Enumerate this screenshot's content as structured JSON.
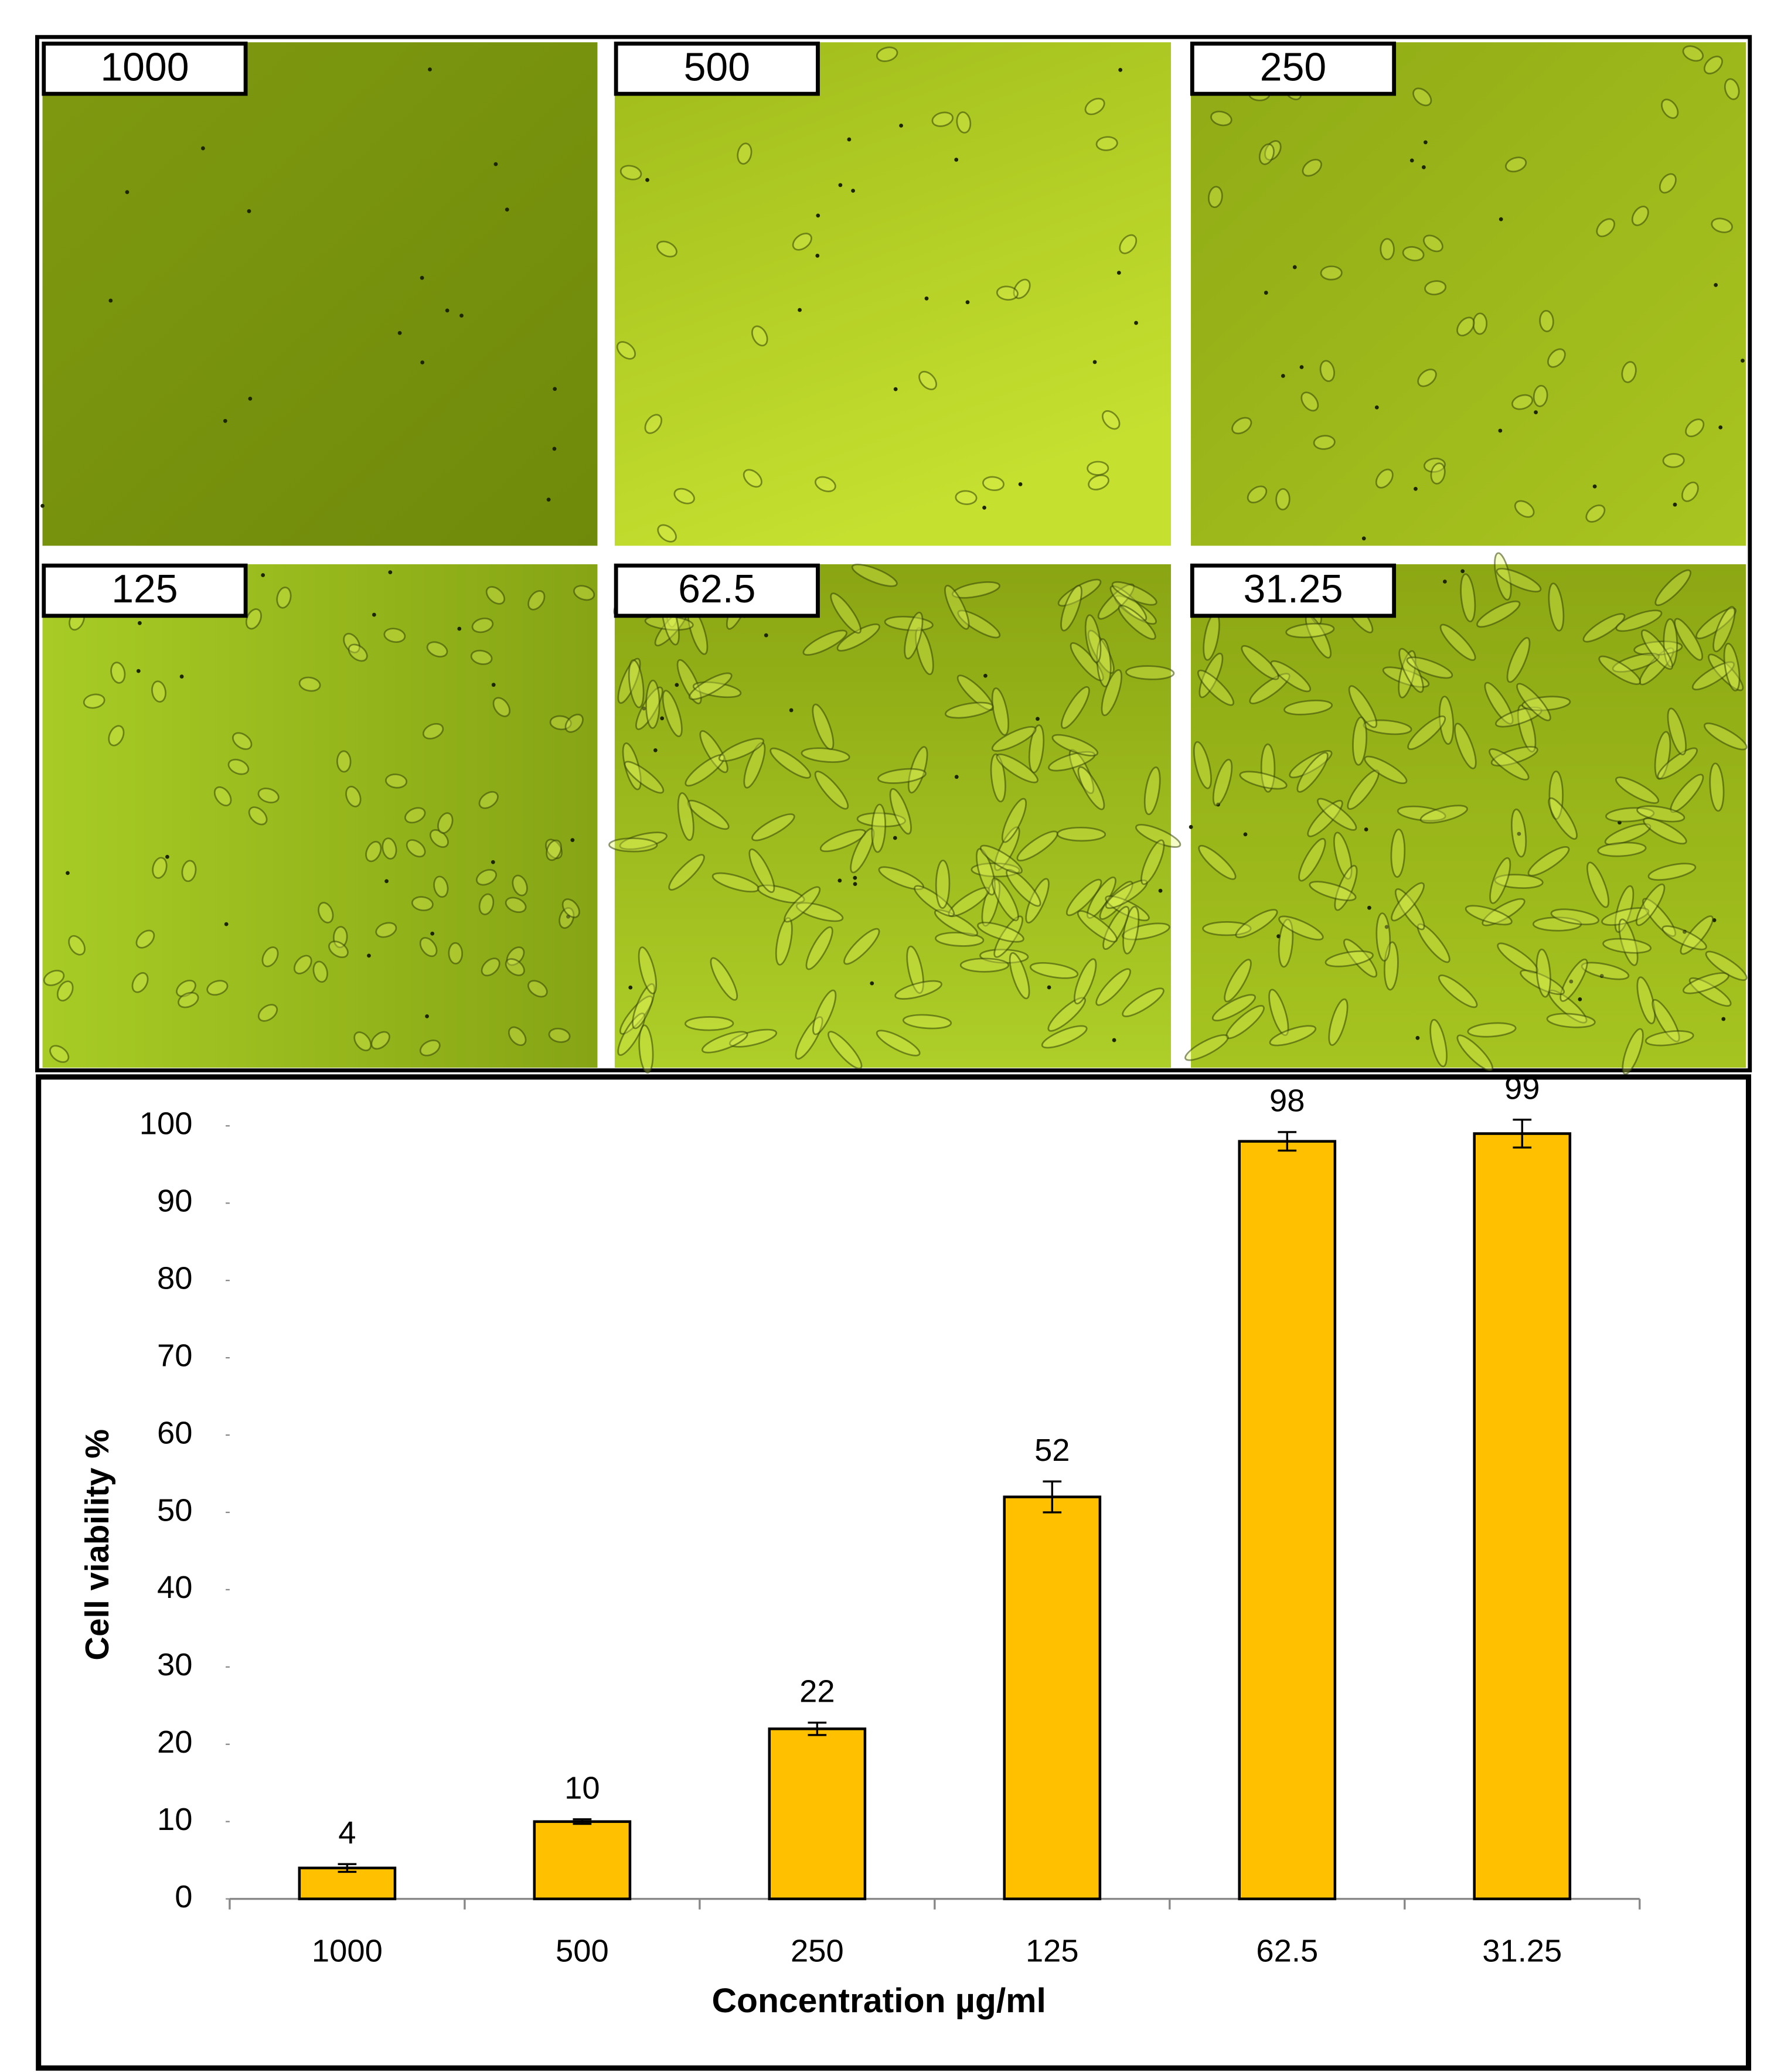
{
  "panels": {
    "labels": [
      "1000",
      "500",
      "250",
      "125",
      "62.5",
      "31.25"
    ]
  },
  "chart_data": {
    "type": "bar",
    "x_label": "Concentration µg/ml",
    "y_label": "Cell viability %",
    "categories": [
      "1000",
      "500",
      "250",
      "125",
      "62.5",
      "31.25"
    ],
    "series": [
      {
        "color": "#ffc000",
        "values": [
          4,
          10,
          22,
          52,
          98,
          99
        ],
        "errors": [
          0.5,
          0.3,
          0.8,
          2,
          1.2,
          1.8
        ]
      }
    ],
    "ylim": [
      0,
      100
    ],
    "yticks": [
      0,
      10,
      20,
      30,
      40,
      50,
      60,
      70,
      80,
      90,
      100
    ],
    "grid": false
  }
}
